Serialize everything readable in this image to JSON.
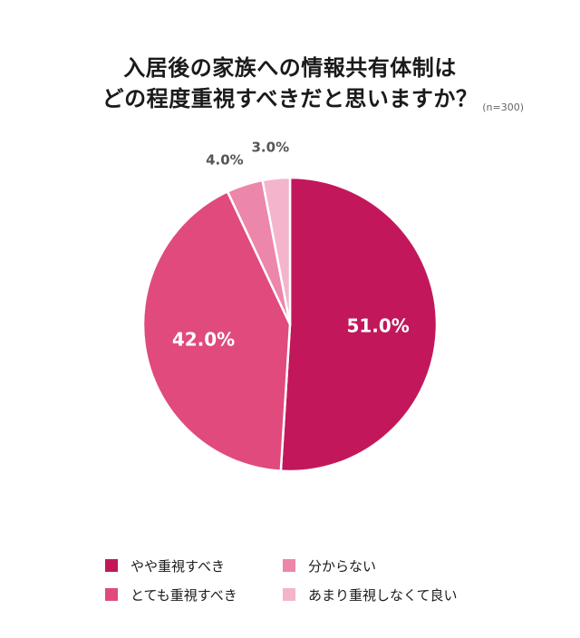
{
  "title_lines": [
    "入居後の家族への情報共有体制は",
    "どの程度重視すべきだと思いますか？"
  ],
  "sample_size": "(n=300)",
  "chart_data": {
    "type": "pie",
    "title": "入居後の家族への情報共有体制は どの程度重視すべきだと思いますか？",
    "categories": [
      "やや重視すべき",
      "とても重視すべき",
      "分からない",
      "あまり重視しなくて良い"
    ],
    "values": [
      51.0,
      42.0,
      4.0,
      3.0
    ],
    "value_labels": [
      "51.0%",
      "42.0%",
      "4.0%",
      "3.0%"
    ],
    "colors": [
      "#c2185b",
      "#e04a7d",
      "#ec86ab",
      "#f4b4cc"
    ],
    "start": "12 o'clock",
    "direction": "clockwise",
    "legend_position": "bottom"
  }
}
